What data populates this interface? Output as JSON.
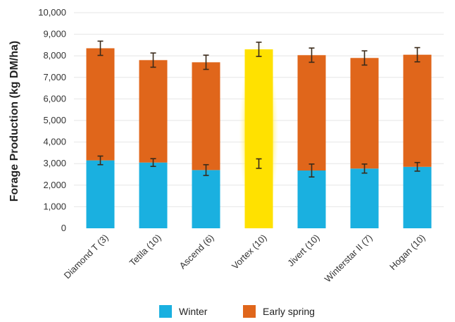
{
  "chart_data": {
    "type": "bar",
    "stacked": true,
    "ylabel": "Forage Production (kg DM/ha)",
    "xlabel": "",
    "ylim": [
      0,
      10000
    ],
    "yticks": [
      "0",
      "1,000",
      "2,000",
      "3,000",
      "4,000",
      "5,000",
      "6,000",
      "7,000",
      "8,000",
      "9,000",
      "10,000"
    ],
    "categories": [
      "Diamond T (3)",
      "Tetila (10)",
      "Ascend (6)",
      "Vortex (10)",
      "Jivert (10)",
      "Winterstar II (7)",
      "Hogan (10)"
    ],
    "series": [
      {
        "name": "Winter",
        "color": "#1ab0e0",
        "values": [
          3150,
          3050,
          2700,
          3000,
          2680,
          2770,
          2850
        ],
        "error": [
          200,
          180,
          250,
          220,
          300,
          210,
          200
        ]
      },
      {
        "name": "Early spring",
        "color": "#e0661b",
        "values": [
          5200,
          4750,
          5000,
          5300,
          5350,
          5130,
          5200
        ],
        "error": [
          330,
          330,
          330,
          330,
          330,
          330,
          330
        ]
      }
    ],
    "highlight": {
      "category": "Vortex (10)",
      "color": "#ffe100"
    },
    "grid": true,
    "legend_position": "bottom"
  }
}
